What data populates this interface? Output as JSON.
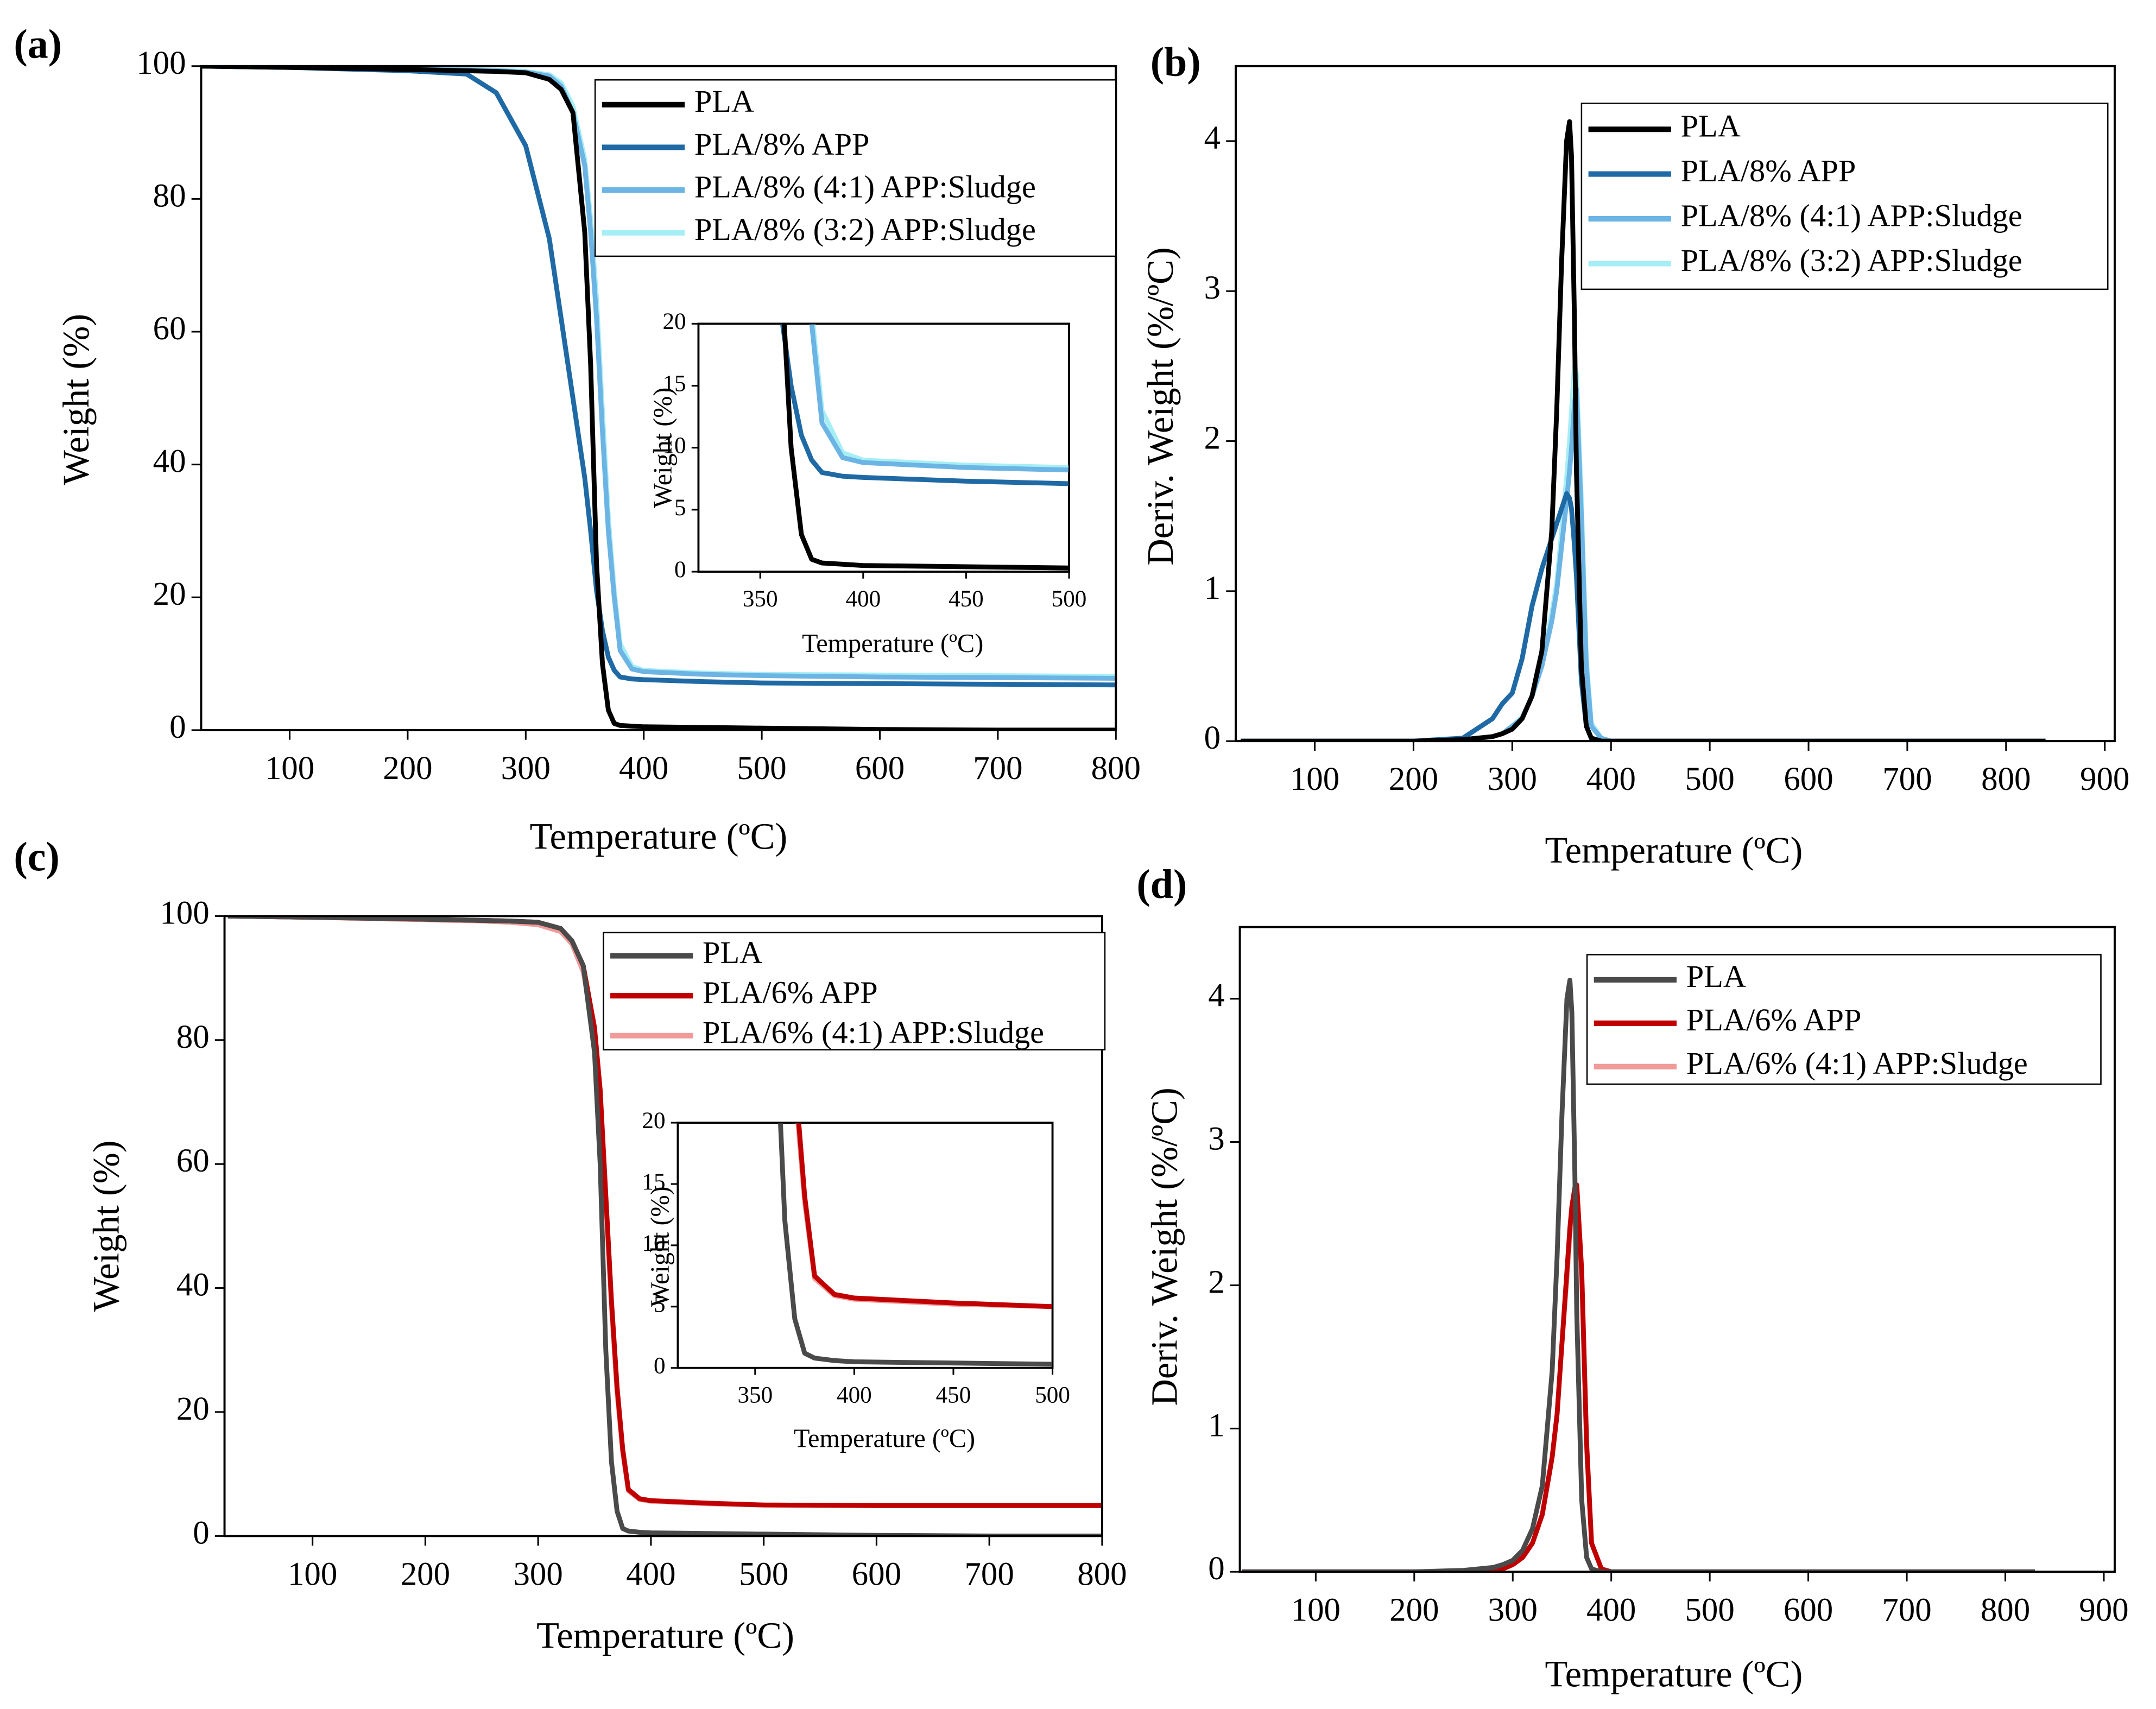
{
  "chart_data": [
    {
      "type": "line",
      "panel_label": "(a)",
      "xlabel": "Temperature (ºC)",
      "ylabel": "Weight (%)",
      "xlim": [
        25,
        800
      ],
      "ylim": [
        0,
        100
      ],
      "xticks": [
        100,
        200,
        300,
        400,
        500,
        600,
        700,
        800
      ],
      "yticks": [
        0,
        20,
        40,
        60,
        80,
        100
      ],
      "legend": "upper right",
      "x": [
        25,
        100,
        200,
        250,
        275,
        300,
        320,
        330,
        340,
        350,
        355,
        360,
        365,
        370,
        375,
        380,
        390,
        400,
        450,
        500,
        600,
        700,
        800
      ],
      "series": [
        {
          "name": "PLA",
          "color": "#000000",
          "values": [
            100,
            99.8,
            99.5,
            99.3,
            99.2,
            99,
            98,
            96.5,
            93,
            75,
            55,
            25,
            10,
            3,
            1,
            0.7,
            0.6,
            0.5,
            0.4,
            0.3,
            0.1,
            0,
            0
          ]
        },
        {
          "name": "PLA/8% APP",
          "color": "#1f6aa5",
          "values": [
            100,
            99.8,
            99.3,
            98.8,
            96,
            88,
            74,
            62,
            50,
            38,
            30,
            21,
            15,
            11,
            9,
            8,
            7.7,
            7.6,
            7.3,
            7.1,
            7,
            6.9,
            6.8
          ]
        },
        {
          "name": "PLA/8% (4:1) APP:Sludge",
          "color": "#6cb4e4",
          "values": [
            100,
            99.8,
            99.5,
            99.4,
            99.3,
            99.1,
            98.5,
            97,
            93,
            85,
            75,
            62,
            45,
            30,
            20,
            12,
            9.2,
            8.8,
            8.4,
            8.2,
            8,
            7.9,
            7.8
          ]
        },
        {
          "name": "PLA/8% (3:2) APP:Sludge",
          "color": "#a6eef5",
          "values": [
            100,
            99.8,
            99.6,
            99.5,
            99.4,
            99.2,
            98.7,
            97.5,
            94,
            86,
            77,
            65,
            48,
            32,
            21,
            13,
            9.6,
            9,
            8.6,
            8.4,
            8.3,
            8.2,
            8.1
          ]
        }
      ],
      "inset": {
        "xlabel": "Temperature (ºC)",
        "ylabel": "Weight (%)",
        "xlim": [
          320,
          500
        ],
        "ylim": [
          0,
          20
        ],
        "xticks": [
          350,
          400,
          450,
          500
        ],
        "yticks": [
          0,
          5,
          10,
          15,
          20
        ]
      }
    },
    {
      "type": "line",
      "panel_label": "(b)",
      "xlabel": "Temperature (ºC)",
      "ylabel": "Deriv. Weight (%/ºC)",
      "xlim": [
        20,
        910
      ],
      "ylim": [
        0,
        4.5
      ],
      "xticks": [
        100,
        200,
        300,
        400,
        500,
        600,
        700,
        800,
        900
      ],
      "yticks": [
        0,
        1,
        2,
        3,
        4
      ],
      "legend": "upper right",
      "x": [
        25,
        100,
        200,
        250,
        280,
        290,
        300,
        310,
        320,
        330,
        340,
        345,
        350,
        355,
        358,
        360,
        363,
        365,
        370,
        375,
        380,
        390,
        400,
        500,
        600,
        700,
        800,
        840
      ],
      "series": [
        {
          "name": "PLA",
          "color": "#000000",
          "values": [
            0,
            0,
            0,
            0.01,
            0.03,
            0.05,
            0.08,
            0.15,
            0.3,
            0.6,
            1.4,
            2.2,
            3.2,
            4,
            4.13,
            3.9,
            2.8,
            1.8,
            0.5,
            0.1,
            0.02,
            0,
            0,
            0,
            0,
            0,
            0,
            0
          ]
        },
        {
          "name": "PLA/8% APP",
          "color": "#1f6aa5",
          "values": [
            0,
            0,
            0,
            0.02,
            0.15,
            0.25,
            0.32,
            0.55,
            0.9,
            1.15,
            1.35,
            1.45,
            1.55,
            1.65,
            1.62,
            1.55,
            1.3,
            1.1,
            0.4,
            0.1,
            0.02,
            0,
            0,
            0,
            0,
            0,
            0,
            0
          ]
        },
        {
          "name": "PLA/8% (4:1) APP:Sludge",
          "color": "#6cb4e4",
          "values": [
            0,
            0,
            0,
            0.01,
            0.03,
            0.05,
            0.1,
            0.15,
            0.3,
            0.5,
            0.8,
            1,
            1.3,
            1.6,
            1.8,
            1.95,
            2.25,
            2.35,
            1.5,
            0.5,
            0.1,
            0.02,
            0,
            0,
            0,
            0,
            0,
            0
          ]
        },
        {
          "name": "PLA/8% (3:2) APP:Sludge",
          "color": "#a6eef5",
          "values": [
            0,
            0,
            0,
            0.01,
            0.03,
            0.05,
            0.1,
            0.16,
            0.3,
            0.5,
            0.85,
            1.05,
            1.4,
            1.75,
            2,
            2.2,
            2.5,
            2.45,
            1.6,
            0.55,
            0.12,
            0.02,
            0,
            0,
            0,
            0,
            0,
            0
          ]
        }
      ]
    },
    {
      "type": "line",
      "panel_label": "(c)",
      "xlabel": "Temperature (ºC)",
      "ylabel": "Weight (%)",
      "xlim": [
        22,
        800
      ],
      "ylim": [
        0,
        100
      ],
      "xticks": [
        100,
        200,
        300,
        400,
        500,
        600,
        700,
        800
      ],
      "yticks": [
        0,
        20,
        40,
        60,
        80,
        100
      ],
      "legend": "upper right",
      "x": [
        25,
        100,
        200,
        250,
        275,
        300,
        320,
        330,
        340,
        350,
        355,
        360,
        365,
        370,
        375,
        380,
        390,
        400,
        450,
        500,
        600,
        700,
        800
      ],
      "series": [
        {
          "name": "PLA",
          "color": "#4a4a4a",
          "values": [
            100,
            99.8,
            99.5,
            99.3,
            99.2,
            99,
            98,
            96,
            92,
            78,
            60,
            30,
            12,
            4,
            1.2,
            0.8,
            0.6,
            0.5,
            0.4,
            0.3,
            0.1,
            0,
            0
          ]
        },
        {
          "name": "PLA/6% APP",
          "color": "#c00000",
          "values": [
            100,
            99.8,
            99.5,
            99.3,
            99.2,
            99,
            98,
            96,
            92,
            82,
            72,
            55,
            38,
            24,
            14,
            7.5,
            6,
            5.7,
            5.3,
            5,
            4.9,
            4.9,
            4.9
          ]
        },
        {
          "name": "PLA/6% (4:1) APP:Sludge",
          "color": "#f09a9a",
          "values": [
            100,
            99.8,
            99.4,
            99.2,
            99,
            98.6,
            97.5,
            95.5,
            91,
            81,
            71,
            54,
            37,
            23,
            13.5,
            7.3,
            5.9,
            5.6,
            5.2,
            5,
            4.9,
            4.9,
            4.9
          ]
        }
      ],
      "inset": {
        "xlabel": "Temperature (ºC)",
        "ylabel": "Weight (%)",
        "xlim": [
          311,
          500
        ],
        "ylim": [
          0,
          20
        ],
        "xticks": [
          350,
          400,
          450,
          500
        ],
        "yticks": [
          0,
          5,
          10,
          15,
          20
        ]
      }
    },
    {
      "type": "line",
      "panel_label": "(d)",
      "xlabel": "Temperature (ºC)",
      "ylabel": "Deriv. Weight (%/ºC)",
      "xlim": [
        23,
        911
      ],
      "ylim": [
        0,
        4.5
      ],
      "xticks": [
        100,
        200,
        300,
        400,
        500,
        600,
        700,
        800,
        900
      ],
      "yticks": [
        0,
        1,
        2,
        3,
        4
      ],
      "legend": "upper right",
      "x": [
        25,
        100,
        200,
        250,
        280,
        290,
        300,
        310,
        320,
        330,
        340,
        345,
        350,
        355,
        358,
        360,
        363,
        365,
        370,
        375,
        380,
        390,
        400,
        500,
        600,
        700,
        800,
        830
      ],
      "series": [
        {
          "name": "PLA",
          "color": "#4a4a4a",
          "values": [
            0,
            0,
            0,
            0.01,
            0.03,
            0.05,
            0.08,
            0.15,
            0.3,
            0.6,
            1.4,
            2.2,
            3.2,
            4,
            4.13,
            3.9,
            2.8,
            1.8,
            0.5,
            0.1,
            0.02,
            0,
            0,
            0,
            0,
            0,
            0,
            0
          ]
        },
        {
          "name": "PLA/6% APP",
          "color": "#c00000",
          "values": [
            0,
            0,
            0,
            0,
            0.01,
            0.02,
            0.05,
            0.1,
            0.2,
            0.4,
            0.8,
            1.1,
            1.6,
            2.1,
            2.4,
            2.55,
            2.68,
            2.7,
            2.1,
            0.9,
            0.2,
            0.02,
            0,
            0,
            0,
            0,
            0,
            0
          ]
        },
        {
          "name": "PLA/6% (4:1) APP:Sludge",
          "color": "#f09a9a",
          "values": [
            0,
            0,
            0,
            0,
            0.01,
            0.02,
            0.05,
            0.1,
            0.2,
            0.4,
            0.8,
            1.1,
            1.6,
            2.05,
            2.35,
            2.5,
            2.62,
            2.65,
            2.05,
            0.85,
            0.2,
            0.02,
            0,
            0,
            0,
            0,
            0,
            0
          ]
        }
      ]
    }
  ]
}
